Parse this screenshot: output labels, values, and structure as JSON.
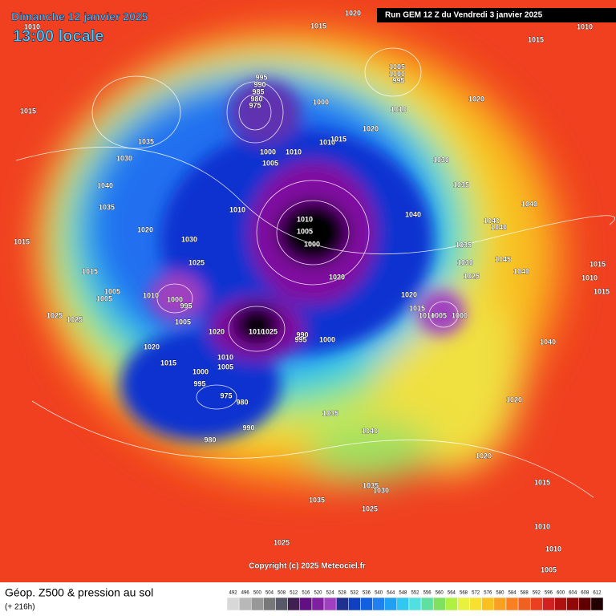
{
  "header": {
    "date": "Dimanche 12 janvier 2025",
    "time": "13:00 locale",
    "run": "Run GEM 12 Z du Vendredi 3 janvier 2025"
  },
  "pressure_labels": [
    "1020",
    "1015",
    "1015",
    "1010",
    "1010",
    "1005",
    "1000",
    "995",
    "995",
    "990",
    "985",
    "980",
    "975",
    "1000",
    "1010",
    "1020",
    "1020",
    "1015",
    "1010",
    "1010",
    "1000",
    "1005",
    "1035",
    "1030",
    "1015",
    "1040",
    "1035",
    "1020",
    "1030",
    "1010",
    "1010",
    "1005",
    "1000",
    "1030",
    "1035",
    "1040",
    "1040",
    "1040",
    "1040",
    "1035",
    "1030",
    "1045",
    "1040",
    "1025",
    "1020",
    "1020",
    "1015",
    "1010",
    "1005",
    "1000",
    "1015",
    "1010",
    "1015",
    "1015",
    "1025",
    "1015",
    "1010",
    "1005",
    "1005",
    "1000",
    "995",
    "1025",
    "1025",
    "1005",
    "1020",
    "1010",
    "1025",
    "990",
    "995",
    "1000",
    "1020",
    "1015",
    "1010",
    "1005",
    "1000",
    "995",
    "975",
    "980",
    "990",
    "980",
    "1035",
    "1040",
    "1020",
    "1040",
    "1020",
    "1015",
    "1035",
    "1030",
    "1035",
    "1025",
    "1010",
    "1010",
    "1005",
    "1025"
  ],
  "copyright": "Copyright (c) 2025 Meteociel.fr",
  "footer": {
    "title": "Géop. Z500 & pression au sol",
    "subtitle": "(+ 216h)"
  },
  "colorbar": {
    "ticks": [
      492,
      496,
      500,
      504,
      508,
      512,
      516,
      520,
      524,
      528,
      532,
      536,
      540,
      544,
      548,
      552,
      556,
      560,
      564,
      568,
      572,
      576,
      580,
      584,
      588,
      592,
      596,
      600,
      604,
      608,
      612
    ]
  }
}
